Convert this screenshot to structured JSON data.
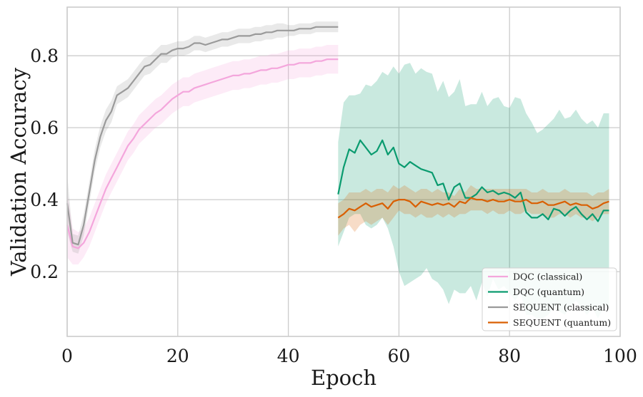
{
  "chart_data": {
    "type": "line",
    "xlabel": "Epoch",
    "ylabel": "Validation Accuracy",
    "xlim": [
      0,
      100
    ],
    "ylim": [
      0.02,
      0.935
    ],
    "xticks": [
      0,
      20,
      40,
      60,
      80,
      100
    ],
    "xtick_labels": [
      "0",
      "20",
      "40",
      "60",
      "80",
      "100"
    ],
    "yticks": [
      0.2,
      0.4,
      0.6,
      0.8
    ],
    "ytick_labels": [
      "0.2",
      "0.4",
      "0.6",
      "0.8"
    ],
    "grid": true,
    "legend_position": "bottom-right",
    "series": [
      {
        "name": "DQC (classical)",
        "color": "#f4a6dc",
        "x": [
          0,
          1,
          2,
          3,
          4,
          5,
          6,
          7,
          8,
          9,
          10,
          11,
          12,
          13,
          14,
          15,
          16,
          17,
          18,
          19,
          20,
          21,
          22,
          23,
          24,
          25,
          26,
          27,
          28,
          29,
          30,
          31,
          32,
          33,
          34,
          35,
          36,
          37,
          38,
          39,
          40,
          41,
          42,
          43,
          44,
          45,
          46,
          47,
          48,
          49
        ],
        "values": [
          0.33,
          0.27,
          0.265,
          0.28,
          0.31,
          0.35,
          0.39,
          0.43,
          0.46,
          0.49,
          0.52,
          0.55,
          0.57,
          0.595,
          0.61,
          0.625,
          0.64,
          0.65,
          0.665,
          0.68,
          0.69,
          0.7,
          0.7,
          0.71,
          0.715,
          0.72,
          0.725,
          0.73,
          0.735,
          0.74,
          0.745,
          0.745,
          0.75,
          0.75,
          0.755,
          0.76,
          0.76,
          0.765,
          0.765,
          0.77,
          0.775,
          0.775,
          0.78,
          0.78,
          0.78,
          0.785,
          0.785,
          0.79,
          0.79,
          0.79
        ],
        "lower": [
          0.24,
          0.22,
          0.22,
          0.24,
          0.27,
          0.31,
          0.35,
          0.39,
          0.42,
          0.45,
          0.48,
          0.51,
          0.53,
          0.555,
          0.57,
          0.585,
          0.6,
          0.61,
          0.625,
          0.64,
          0.65,
          0.66,
          0.66,
          0.67,
          0.675,
          0.68,
          0.685,
          0.69,
          0.695,
          0.7,
          0.705,
          0.705,
          0.71,
          0.71,
          0.715,
          0.72,
          0.72,
          0.725,
          0.725,
          0.73,
          0.735,
          0.735,
          0.74,
          0.74,
          0.74,
          0.745,
          0.745,
          0.75,
          0.75,
          0.75
        ],
        "upper": [
          0.42,
          0.32,
          0.31,
          0.32,
          0.35,
          0.39,
          0.43,
          0.47,
          0.5,
          0.53,
          0.56,
          0.59,
          0.61,
          0.635,
          0.65,
          0.665,
          0.68,
          0.69,
          0.705,
          0.72,
          0.73,
          0.74,
          0.74,
          0.75,
          0.755,
          0.76,
          0.765,
          0.77,
          0.775,
          0.78,
          0.785,
          0.785,
          0.79,
          0.79,
          0.795,
          0.8,
          0.8,
          0.805,
          0.805,
          0.81,
          0.815,
          0.815,
          0.82,
          0.82,
          0.82,
          0.825,
          0.825,
          0.83,
          0.83,
          0.83
        ]
      },
      {
        "name": "DQC (quantum)",
        "color": "#0a9b6f",
        "x": [
          49,
          50,
          51,
          52,
          53,
          54,
          55,
          56,
          57,
          58,
          59,
          60,
          61,
          62,
          63,
          64,
          65,
          66,
          67,
          68,
          69,
          70,
          71,
          72,
          73,
          74,
          75,
          76,
          77,
          78,
          79,
          80,
          81,
          82,
          83,
          84,
          85,
          86,
          87,
          88,
          89,
          90,
          91,
          92,
          93,
          94,
          95,
          96,
          97,
          98
        ],
        "values": [
          0.415,
          0.49,
          0.54,
          0.53,
          0.565,
          0.545,
          0.525,
          0.535,
          0.565,
          0.525,
          0.545,
          0.5,
          0.49,
          0.505,
          0.495,
          0.485,
          0.48,
          0.475,
          0.44,
          0.445,
          0.4,
          0.435,
          0.445,
          0.405,
          0.405,
          0.415,
          0.435,
          0.42,
          0.425,
          0.415,
          0.42,
          0.415,
          0.405,
          0.42,
          0.365,
          0.35,
          0.35,
          0.36,
          0.345,
          0.375,
          0.37,
          0.355,
          0.37,
          0.38,
          0.36,
          0.345,
          0.36,
          0.34,
          0.37,
          0.37
        ],
        "lower": [
          0.27,
          0.31,
          0.35,
          0.36,
          0.36,
          0.33,
          0.32,
          0.33,
          0.35,
          0.32,
          0.27,
          0.2,
          0.16,
          0.17,
          0.18,
          0.19,
          0.21,
          0.18,
          0.17,
          0.15,
          0.11,
          0.15,
          0.14,
          0.14,
          0.16,
          0.12,
          0.17,
          0.13,
          0.18,
          0.15,
          0.16,
          0.14,
          0.12,
          0.14,
          0.08,
          0.08,
          0.07,
          0.07,
          0.08,
          0.1,
          0.09,
          0.08,
          0.1,
          0.12,
          0.1,
          0.08,
          0.1,
          0.07,
          0.1,
          0.1
        ],
        "upper": [
          0.56,
          0.67,
          0.69,
          0.69,
          0.695,
          0.72,
          0.715,
          0.73,
          0.755,
          0.745,
          0.77,
          0.75,
          0.775,
          0.78,
          0.75,
          0.765,
          0.755,
          0.75,
          0.7,
          0.73,
          0.685,
          0.7,
          0.735,
          0.66,
          0.665,
          0.665,
          0.7,
          0.66,
          0.68,
          0.685,
          0.66,
          0.655,
          0.685,
          0.68,
          0.64,
          0.615,
          0.585,
          0.595,
          0.61,
          0.625,
          0.65,
          0.625,
          0.63,
          0.65,
          0.625,
          0.61,
          0.62,
          0.6,
          0.64,
          0.64
        ]
      },
      {
        "name": "SEQUENT (classical)",
        "color": "#9a9a9a",
        "x": [
          0,
          1,
          2,
          3,
          4,
          5,
          6,
          7,
          8,
          9,
          10,
          11,
          12,
          13,
          14,
          15,
          16,
          17,
          18,
          19,
          20,
          21,
          22,
          23,
          24,
          25,
          26,
          27,
          28,
          29,
          30,
          31,
          32,
          33,
          34,
          35,
          36,
          37,
          38,
          39,
          40,
          41,
          42,
          43,
          44,
          45,
          46,
          47,
          48,
          49
        ],
        "values": [
          0.39,
          0.28,
          0.275,
          0.33,
          0.42,
          0.51,
          0.575,
          0.62,
          0.645,
          0.69,
          0.7,
          0.71,
          0.73,
          0.75,
          0.77,
          0.775,
          0.79,
          0.805,
          0.805,
          0.815,
          0.82,
          0.82,
          0.825,
          0.835,
          0.835,
          0.83,
          0.835,
          0.84,
          0.845,
          0.845,
          0.85,
          0.855,
          0.855,
          0.855,
          0.86,
          0.86,
          0.865,
          0.865,
          0.87,
          0.87,
          0.87,
          0.87,
          0.875,
          0.875,
          0.875,
          0.88,
          0.88,
          0.88,
          0.88,
          0.88
        ],
        "lower": [
          0.31,
          0.255,
          0.25,
          0.3,
          0.39,
          0.48,
          0.545,
          0.59,
          0.615,
          0.665,
          0.675,
          0.685,
          0.705,
          0.725,
          0.745,
          0.75,
          0.765,
          0.78,
          0.78,
          0.795,
          0.8,
          0.8,
          0.805,
          0.815,
          0.815,
          0.81,
          0.815,
          0.82,
          0.825,
          0.825,
          0.83,
          0.835,
          0.835,
          0.835,
          0.84,
          0.84,
          0.845,
          0.845,
          0.85,
          0.85,
          0.855,
          0.855,
          0.86,
          0.86,
          0.86,
          0.865,
          0.865,
          0.865,
          0.865,
          0.865
        ],
        "upper": [
          0.47,
          0.305,
          0.3,
          0.36,
          0.45,
          0.54,
          0.605,
          0.65,
          0.675,
          0.715,
          0.725,
          0.735,
          0.755,
          0.775,
          0.795,
          0.8,
          0.815,
          0.83,
          0.83,
          0.835,
          0.84,
          0.84,
          0.845,
          0.855,
          0.855,
          0.85,
          0.855,
          0.86,
          0.865,
          0.865,
          0.87,
          0.875,
          0.875,
          0.875,
          0.88,
          0.88,
          0.885,
          0.885,
          0.89,
          0.89,
          0.885,
          0.885,
          0.89,
          0.89,
          0.89,
          0.895,
          0.895,
          0.895,
          0.895,
          0.895
        ]
      },
      {
        "name": "SEQUENT (quantum)",
        "color": "#d95f02",
        "x": [
          49,
          50,
          51,
          52,
          53,
          54,
          55,
          56,
          57,
          58,
          59,
          60,
          61,
          62,
          63,
          64,
          65,
          66,
          67,
          68,
          69,
          70,
          71,
          72,
          73,
          74,
          75,
          76,
          77,
          78,
          79,
          80,
          81,
          82,
          83,
          84,
          85,
          86,
          87,
          88,
          89,
          90,
          91,
          92,
          93,
          94,
          95,
          96,
          97,
          98
        ],
        "values": [
          0.35,
          0.36,
          0.375,
          0.37,
          0.38,
          0.39,
          0.38,
          0.385,
          0.39,
          0.375,
          0.395,
          0.4,
          0.4,
          0.395,
          0.38,
          0.395,
          0.39,
          0.385,
          0.39,
          0.385,
          0.39,
          0.38,
          0.395,
          0.39,
          0.405,
          0.4,
          0.4,
          0.395,
          0.4,
          0.395,
          0.395,
          0.4,
          0.395,
          0.395,
          0.4,
          0.39,
          0.39,
          0.395,
          0.385,
          0.385,
          0.39,
          0.395,
          0.385,
          0.39,
          0.385,
          0.385,
          0.375,
          0.38,
          0.39,
          0.395
        ],
        "lower": [
          0.3,
          0.32,
          0.33,
          0.31,
          0.33,
          0.34,
          0.33,
          0.34,
          0.35,
          0.33,
          0.35,
          0.37,
          0.36,
          0.36,
          0.35,
          0.36,
          0.35,
          0.35,
          0.36,
          0.35,
          0.36,
          0.35,
          0.36,
          0.36,
          0.37,
          0.37,
          0.37,
          0.36,
          0.37,
          0.36,
          0.36,
          0.37,
          0.36,
          0.36,
          0.37,
          0.36,
          0.36,
          0.36,
          0.35,
          0.35,
          0.36,
          0.36,
          0.35,
          0.36,
          0.35,
          0.35,
          0.34,
          0.35,
          0.36,
          0.36
        ],
        "upper": [
          0.39,
          0.4,
          0.42,
          0.42,
          0.42,
          0.43,
          0.42,
          0.43,
          0.43,
          0.42,
          0.44,
          0.43,
          0.44,
          0.43,
          0.42,
          0.43,
          0.43,
          0.42,
          0.43,
          0.42,
          0.42,
          0.41,
          0.43,
          0.42,
          0.44,
          0.43,
          0.43,
          0.43,
          0.43,
          0.43,
          0.43,
          0.43,
          0.43,
          0.43,
          0.43,
          0.42,
          0.42,
          0.43,
          0.42,
          0.42,
          0.42,
          0.43,
          0.42,
          0.42,
          0.42,
          0.42,
          0.41,
          0.42,
          0.42,
          0.43
        ]
      }
    ]
  }
}
